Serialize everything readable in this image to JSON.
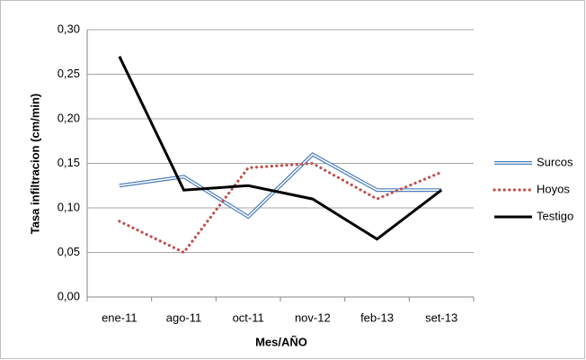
{
  "chart_data": {
    "type": "line",
    "categories": [
      "ene-11",
      "ago-11",
      "oct-11",
      "nov-12",
      "feb-13",
      "set-13"
    ],
    "series": [
      {
        "name": "Surcos",
        "color": "#4a7ebb",
        "style": "double",
        "values": [
          0.125,
          0.135,
          0.09,
          0.16,
          0.12,
          0.12
        ]
      },
      {
        "name": "Hoyos",
        "color": "#c0504d",
        "style": "dotted",
        "values": [
          0.085,
          0.05,
          0.145,
          0.15,
          0.11,
          0.14
        ]
      },
      {
        "name": "Testigo",
        "color": "#000000",
        "style": "solid",
        "values": [
          0.27,
          0.12,
          0.125,
          0.11,
          0.065,
          0.12
        ]
      }
    ],
    "x_label": "Mes/AÑO",
    "y_label": "Tasa infiltracion (cm/min)",
    "ylim": [
      0,
      0.3
    ],
    "yticks": [
      {
        "value": 0,
        "label": "0,00"
      },
      {
        "value": 0.05,
        "label": "0,05"
      },
      {
        "value": 0.1,
        "label": "0,10"
      },
      {
        "value": 0.15,
        "label": "0,15"
      },
      {
        "value": 0.2,
        "label": "0,20"
      },
      {
        "value": 0.25,
        "label": "0,25"
      },
      {
        "value": 0.3,
        "label": "0,30"
      }
    ],
    "grid": true,
    "legend": "right"
  }
}
